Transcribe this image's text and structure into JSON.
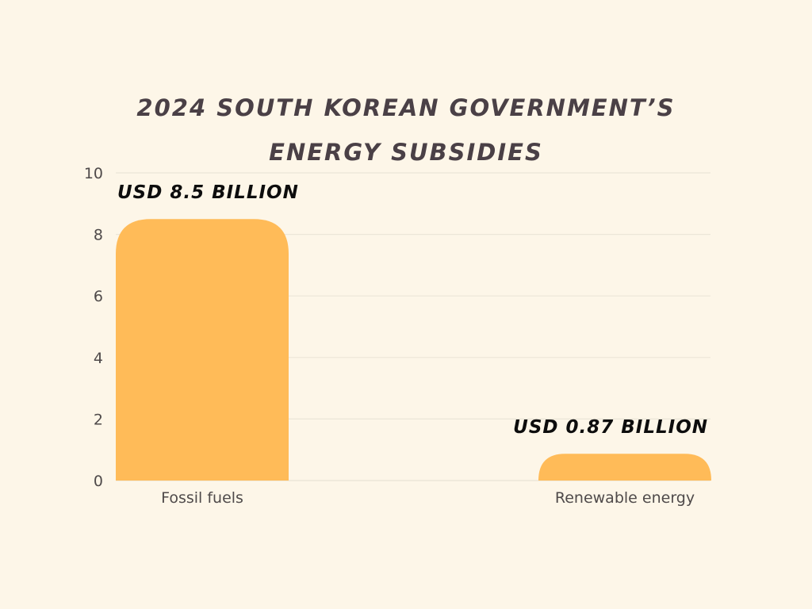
{
  "chart_data": {
    "type": "bar",
    "title_lines": [
      "2024 SOUTH KOREAN GOVERNMENT’S",
      "ENERGY SUBSIDIES"
    ],
    "categories": [
      "Fossil fuels",
      "Renewable energy"
    ],
    "values": [
      8.5,
      0.87
    ],
    "data_labels": [
      "USD 8.5 BILLION",
      "USD 0.87 BILLION"
    ],
    "ylim": [
      0,
      10
    ],
    "yticks": [
      0,
      2,
      4,
      6,
      8,
      10
    ],
    "xlabel": "",
    "ylabel": "",
    "grid": true,
    "bar_color": "#ffbb58",
    "grid_color": "#ece6d8"
  }
}
